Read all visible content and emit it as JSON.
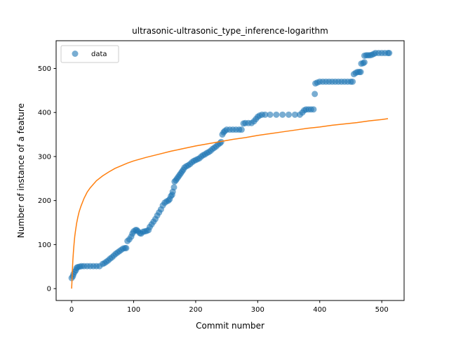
{
  "chart_data": {
    "type": "scatter",
    "title": "ultrasonic-ultrasonic_type_inference-logarithm",
    "xlabel": "Commit number",
    "ylabel": "Number of instance of a feature",
    "xlim": [
      -25,
      536
    ],
    "ylim": [
      -27,
      563
    ],
    "xticks": [
      0,
      100,
      200,
      300,
      400,
      500
    ],
    "yticks": [
      0,
      100,
      200,
      300,
      400,
      500
    ],
    "grid": false,
    "legend": {
      "placement": "top-left",
      "entries": [
        "data"
      ]
    },
    "series": [
      {
        "name": "data",
        "kind": "scatter",
        "color": "#1f77b4",
        "points": [
          [
            0,
            24
          ],
          [
            2,
            28
          ],
          [
            3,
            33
          ],
          [
            5,
            38
          ],
          [
            7,
            42
          ],
          [
            8,
            47
          ],
          [
            10,
            49
          ],
          [
            13,
            50
          ],
          [
            16,
            51
          ],
          [
            20,
            51
          ],
          [
            25,
            51
          ],
          [
            30,
            51
          ],
          [
            35,
            51
          ],
          [
            40,
            51
          ],
          [
            45,
            51
          ],
          [
            50,
            56
          ],
          [
            53,
            58
          ],
          [
            56,
            61
          ],
          [
            59,
            64
          ],
          [
            62,
            68
          ],
          [
            65,
            71
          ],
          [
            68,
            75
          ],
          [
            71,
            79
          ],
          [
            74,
            82
          ],
          [
            77,
            85
          ],
          [
            80,
            88
          ],
          [
            83,
            91
          ],
          [
            86,
            92
          ],
          [
            88,
            92
          ],
          [
            90,
            108
          ],
          [
            93,
            112
          ],
          [
            96,
            118
          ],
          [
            98,
            125
          ],
          [
            100,
            130
          ],
          [
            103,
            133
          ],
          [
            105,
            133
          ],
          [
            107,
            130
          ],
          [
            110,
            126
          ],
          [
            112,
            125
          ],
          [
            115,
            129
          ],
          [
            118,
            130
          ],
          [
            121,
            131
          ],
          [
            124,
            133
          ],
          [
            126,
            140
          ],
          [
            129,
            146
          ],
          [
            132,
            152
          ],
          [
            135,
            158
          ],
          [
            138,
            166
          ],
          [
            141,
            173
          ],
          [
            144,
            180
          ],
          [
            147,
            189
          ],
          [
            150,
            195
          ],
          [
            153,
            198
          ],
          [
            156,
            200
          ],
          [
            158,
            203
          ],
          [
            160,
            210
          ],
          [
            162,
            213
          ],
          [
            163,
            220
          ],
          [
            165,
            230
          ],
          [
            166,
            243
          ],
          [
            168,
            246
          ],
          [
            170,
            250
          ],
          [
            172,
            254
          ],
          [
            174,
            258
          ],
          [
            176,
            262
          ],
          [
            178,
            266
          ],
          [
            180,
            270
          ],
          [
            182,
            275
          ],
          [
            185,
            278
          ],
          [
            188,
            280
          ],
          [
            191,
            283
          ],
          [
            194,
            287
          ],
          [
            197,
            290
          ],
          [
            200,
            292
          ],
          [
            203,
            294
          ],
          [
            206,
            296
          ],
          [
            209,
            300
          ],
          [
            212,
            303
          ],
          [
            215,
            305
          ],
          [
            218,
            308
          ],
          [
            221,
            310
          ],
          [
            224,
            313
          ],
          [
            227,
            317
          ],
          [
            230,
            320
          ],
          [
            233,
            323
          ],
          [
            236,
            327
          ],
          [
            239,
            330
          ],
          [
            241,
            333
          ],
          [
            243,
            350
          ],
          [
            245,
            355
          ],
          [
            247,
            358
          ],
          [
            250,
            361
          ],
          [
            255,
            361
          ],
          [
            260,
            361
          ],
          [
            265,
            361
          ],
          [
            270,
            361
          ],
          [
            274,
            361
          ],
          [
            277,
            375
          ],
          [
            280,
            376
          ],
          [
            285,
            376
          ],
          [
            290,
            376
          ],
          [
            294,
            380
          ],
          [
            297,
            385
          ],
          [
            300,
            390
          ],
          [
            303,
            393
          ],
          [
            307,
            395
          ],
          [
            312,
            395
          ],
          [
            320,
            395
          ],
          [
            330,
            395
          ],
          [
            340,
            395
          ],
          [
            350,
            395
          ],
          [
            360,
            395
          ],
          [
            368,
            395
          ],
          [
            372,
            400
          ],
          [
            375,
            405
          ],
          [
            378,
            407
          ],
          [
            382,
            407
          ],
          [
            386,
            407
          ],
          [
            390,
            407
          ],
          [
            392,
            442
          ],
          [
            393,
            466
          ],
          [
            396,
            468
          ],
          [
            400,
            470
          ],
          [
            405,
            470
          ],
          [
            410,
            470
          ],
          [
            415,
            470
          ],
          [
            420,
            470
          ],
          [
            425,
            470
          ],
          [
            430,
            470
          ],
          [
            435,
            470
          ],
          [
            440,
            470
          ],
          [
            445,
            470
          ],
          [
            450,
            470
          ],
          [
            453,
            470
          ],
          [
            455,
            487
          ],
          [
            458,
            490
          ],
          [
            461,
            492
          ],
          [
            464,
            492
          ],
          [
            466,
            492
          ],
          [
            467,
            511
          ],
          [
            470,
            512
          ],
          [
            472,
            514
          ],
          [
            472,
            529
          ],
          [
            475,
            530
          ],
          [
            478,
            530
          ],
          [
            481,
            530
          ],
          [
            484,
            531
          ],
          [
            487,
            533
          ],
          [
            490,
            535
          ],
          [
            495,
            535
          ],
          [
            500,
            535
          ],
          [
            505,
            535
          ],
          [
            510,
            535
          ],
          [
            512,
            535
          ]
        ]
      },
      {
        "kind": "line",
        "color": "#ff7f0e",
        "points": [
          [
            0,
            0
          ],
          [
            0.5,
            15
          ],
          [
            1,
            37
          ],
          [
            2,
            65
          ],
          [
            3,
            86
          ],
          [
            4,
            103
          ],
          [
            5,
            118
          ],
          [
            6,
            129
          ],
          [
            8,
            148
          ],
          [
            10,
            162
          ],
          [
            12,
            174
          ],
          [
            15,
            187
          ],
          [
            20,
            205
          ],
          [
            25,
            219
          ],
          [
            30,
            229
          ],
          [
            40,
            245
          ],
          [
            50,
            256
          ],
          [
            60,
            265
          ],
          [
            70,
            273
          ],
          [
            80,
            279
          ],
          [
            90,
            285
          ],
          [
            100,
            290
          ],
          [
            120,
            298
          ],
          [
            140,
            305
          ],
          [
            160,
            312
          ],
          [
            180,
            318
          ],
          [
            200,
            324
          ],
          [
            220,
            329
          ],
          [
            240,
            334
          ],
          [
            260,
            339
          ],
          [
            280,
            343
          ],
          [
            300,
            348
          ],
          [
            320,
            352
          ],
          [
            340,
            356
          ],
          [
            360,
            360
          ],
          [
            380,
            364
          ],
          [
            400,
            367
          ],
          [
            420,
            371
          ],
          [
            440,
            374
          ],
          [
            460,
            377
          ],
          [
            480,
            381
          ],
          [
            500,
            384
          ],
          [
            510,
            386
          ]
        ]
      }
    ]
  }
}
